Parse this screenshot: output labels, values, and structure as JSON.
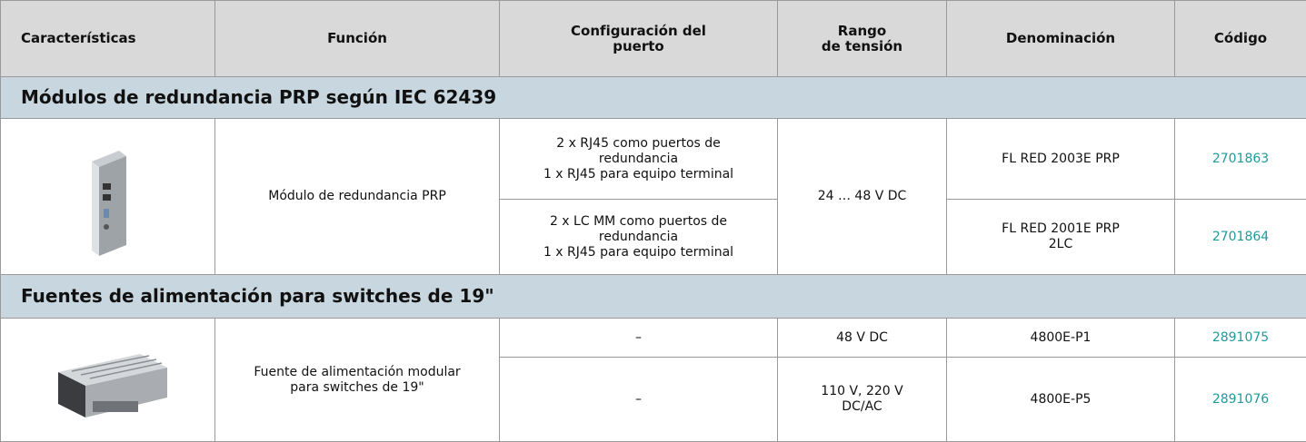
{
  "header": {
    "columns": [
      "Características",
      "Función",
      "Configuración del\npuerto",
      "Rango\nde tensión",
      "Denominación",
      "Código"
    ]
  },
  "sections": [
    {
      "title": "Módulos de redundancia PRP según IEC 62439",
      "function": "Módulo de redundancia PRP",
      "voltage": "24 … 48 V DC",
      "items": [
        {
          "config": "2 x RJ45 como puertos de\nredundancia\n1 x RJ45 para equipo terminal",
          "name": "FL RED 2003E PRP",
          "code": "2701863"
        },
        {
          "config": "2 x LC MM como puertos de\nredundancia\n1 x RJ45 para equipo terminal",
          "name": "FL RED 2001E PRP\n2LC",
          "code": "2701864"
        }
      ]
    },
    {
      "title": "Fuentes de alimentación para switches de 19\"",
      "function": "Fuente de alimentación modular\npara switches de 19\"",
      "items": [
        {
          "config": "–",
          "voltage": "48 V DC",
          "name": "4800E-P1",
          "code": "2891075"
        },
        {
          "config": "–",
          "voltage": "110 V, 220 V\nDC/AC",
          "name": "4800E-P5",
          "code": "2891076"
        }
      ]
    }
  ]
}
